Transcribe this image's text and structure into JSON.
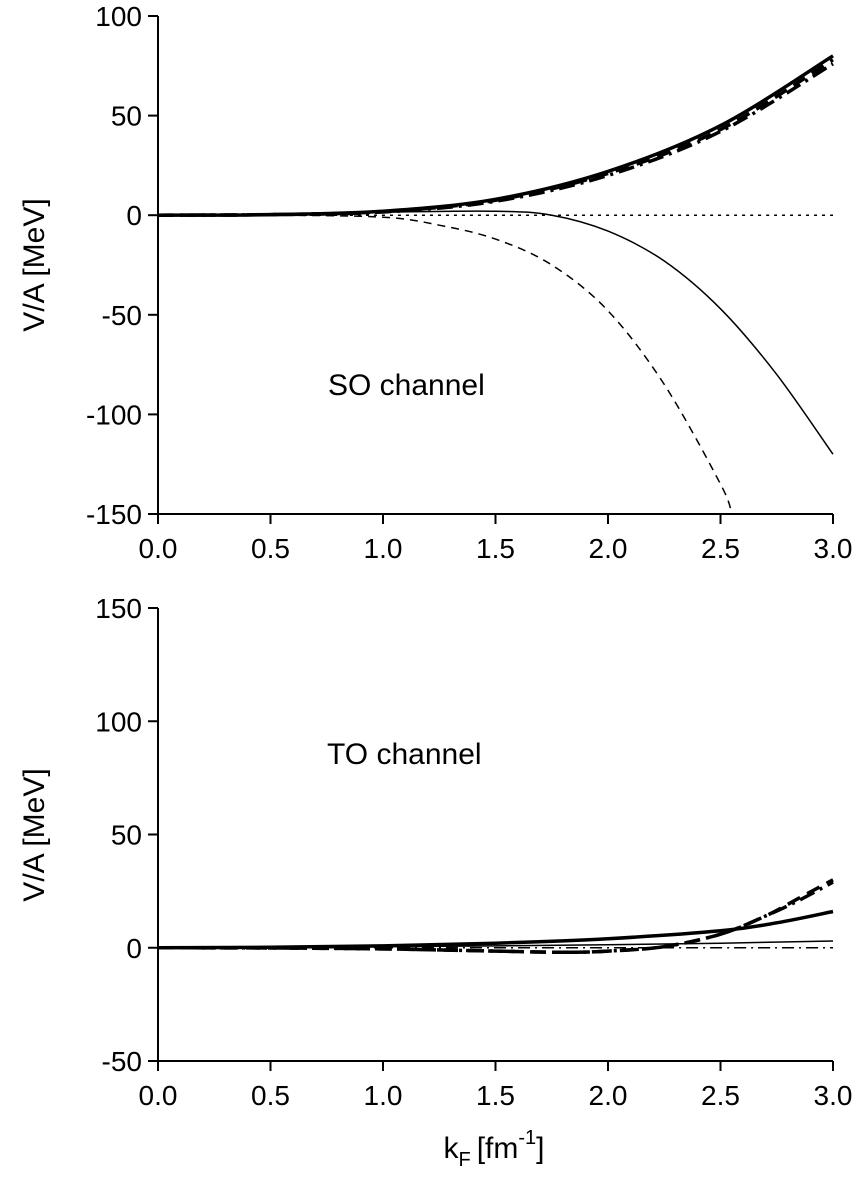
{
  "chart_data": [
    {
      "type": "line",
      "annotation": "SO channel",
      "ylabel": "V/A [MeV]",
      "xlabel": "",
      "xlim": [
        0,
        3
      ],
      "ylim": [
        -150,
        100
      ],
      "xticks": [
        "0.0",
        "0.5",
        "1.0",
        "1.5",
        "2.0",
        "2.5",
        "3.0"
      ],
      "yticks": [
        "100",
        "50",
        "0",
        "-50",
        "-100",
        "-150"
      ],
      "series": [
        {
          "style": "thick-solid",
          "x": [
            0,
            0.5,
            1.0,
            1.5,
            2.0,
            2.5,
            3.0
          ],
          "y": [
            0,
            0.3,
            2,
            8,
            22,
            45,
            80
          ]
        },
        {
          "style": "thick-dashed",
          "x": [
            0,
            0.5,
            1.0,
            1.5,
            2.0,
            2.5,
            3.0
          ],
          "y": [
            0,
            0.3,
            1.8,
            7.5,
            21,
            43,
            78
          ]
        },
        {
          "style": "thick-dashdot",
          "x": [
            0,
            0.5,
            1.0,
            1.5,
            2.0,
            2.5,
            3.0
          ],
          "y": [
            0,
            0.3,
            1.6,
            7,
            20,
            42,
            76
          ]
        },
        {
          "style": "thin-solid",
          "x": [
            0,
            0.5,
            1.0,
            1.5,
            1.75,
            2.0,
            2.25,
            2.5,
            2.75,
            3.0
          ],
          "y": [
            0,
            0.3,
            1.5,
            2,
            0,
            -8,
            -23,
            -47,
            -80,
            -120
          ]
        },
        {
          "style": "thin-dashed",
          "x": [
            0,
            0.5,
            1.0,
            1.25,
            1.5,
            1.75,
            2.0,
            2.25,
            2.5,
            2.55
          ],
          "y": [
            0,
            0,
            -1,
            -5,
            -12,
            -25,
            -48,
            -85,
            -135,
            -150
          ]
        },
        {
          "style": "thin-dotted",
          "x": [
            0,
            3.0
          ],
          "y": [
            0,
            0
          ]
        }
      ]
    },
    {
      "type": "line",
      "annotation": "TO channel",
      "ylabel": "V/A [MeV]",
      "xlabel": "k_F [fm^-1]",
      "xlabel_main": "k",
      "xlabel_sub": "F",
      "xlabel_unit": "[fm",
      "xlabel_sup": "-1",
      "xlabel_close": "]",
      "xlim": [
        0,
        3
      ],
      "ylim": [
        -50,
        150
      ],
      "xticks": [
        "0.0",
        "0.5",
        "1.0",
        "1.5",
        "2.0",
        "2.5",
        "3.0"
      ],
      "yticks": [
        "150",
        "100",
        "50",
        "0",
        "-50"
      ],
      "series": [
        {
          "style": "thick-solid",
          "x": [
            0,
            0.5,
            1.0,
            1.5,
            2.0,
            2.5,
            2.75,
            3.0
          ],
          "y": [
            0,
            0.2,
            0.8,
            2,
            4,
            7.5,
            11,
            16
          ]
        },
        {
          "style": "thick-dashed",
          "x": [
            0,
            0.5,
            1.0,
            1.5,
            1.8,
            2.0,
            2.25,
            2.5,
            2.7,
            2.85,
            3.0
          ],
          "y": [
            0,
            -0.1,
            -0.5,
            -1.5,
            -2,
            -1.5,
            0.5,
            6,
            14,
            22,
            30
          ]
        },
        {
          "style": "thick-dashdot",
          "x": [
            0,
            0.5,
            1.0,
            1.5,
            1.8,
            2.0,
            2.25,
            2.5,
            2.7,
            2.85,
            3.0
          ],
          "y": [
            0,
            -0.1,
            -0.5,
            -1.5,
            -2,
            -1.5,
            0.5,
            6,
            14,
            21,
            29
          ]
        },
        {
          "style": "thin-solid",
          "x": [
            0,
            0.5,
            1.0,
            1.5,
            2.0,
            2.5,
            3.0
          ],
          "y": [
            0,
            0.1,
            0.4,
            0.8,
            1.3,
            2,
            3
          ]
        },
        {
          "style": "thin-dashdot",
          "x": [
            0,
            3.0
          ],
          "y": [
            0,
            0
          ]
        }
      ]
    }
  ]
}
